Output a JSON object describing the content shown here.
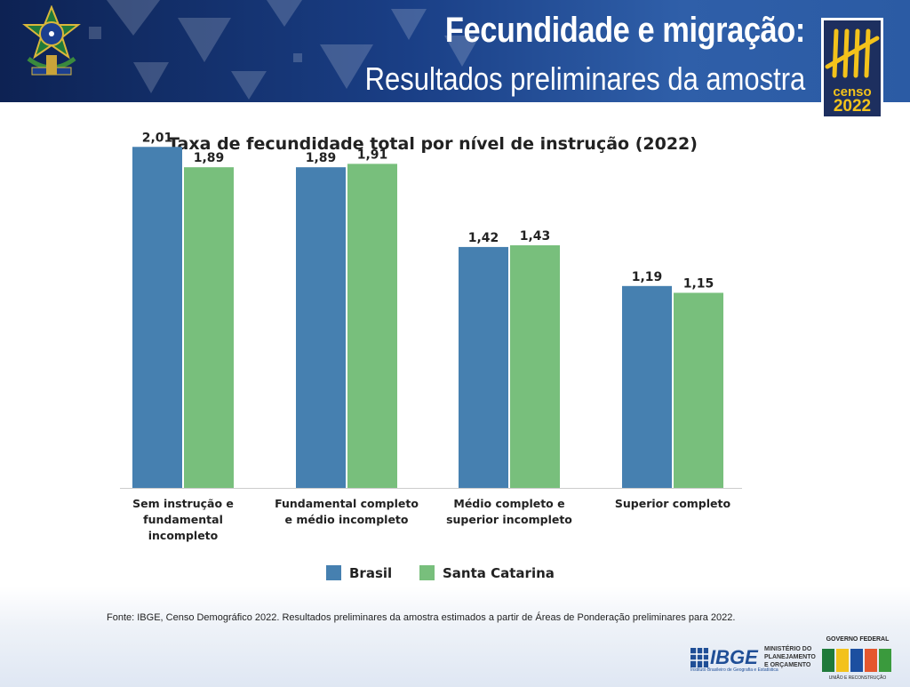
{
  "header": {
    "title_line1": "Fecundidade e migração:",
    "title_line2": "Resultados preliminares da amostra",
    "censo_word": "censo",
    "censo_year": "2022"
  },
  "chart_data": {
    "type": "bar",
    "title": "Taxa de fecundidade total por nível de instrução (2022)",
    "categories": [
      [
        "Sem instrução e",
        "fundamental",
        "incompleto"
      ],
      [
        "Fundamental completo",
        "e médio incompleto"
      ],
      [
        "Médio completo e",
        "superior incompleto"
      ],
      [
        "Superior completo"
      ]
    ],
    "series": [
      {
        "name": "Brasil",
        "color": "#4680b0",
        "values": [
          2.01,
          1.89,
          1.42,
          1.19
        ],
        "labels": [
          "2,01",
          "1,89",
          "1,42",
          "1,19"
        ]
      },
      {
        "name": "Santa Catarina",
        "color": "#78bf7c",
        "values": [
          1.89,
          1.91,
          1.43,
          1.15
        ],
        "labels": [
          "1,89",
          "1,91",
          "1,43",
          "1,15"
        ]
      }
    ],
    "ylim": [
      0,
      2.2
    ],
    "grid": false,
    "legend": "bottom"
  },
  "footer": {
    "source": "Fonte: IBGE, Censo Demográfico 2022. Resultados preliminares da amostra estimados a partir de Áreas de Ponderação preliminares para 2022.",
    "ibge_logo": "IBGE",
    "ibge_sub": "Instituto Brasileiro de Geografia e Estatística",
    "ministry_lines": [
      "MINISTÉRIO DO",
      "PLANEJAMENTO",
      "E ORÇAMENTO"
    ],
    "gov_title": "GOVERNO FEDERAL",
    "gov_sub": "UNIÃO E RECONSTRUÇÃO"
  }
}
